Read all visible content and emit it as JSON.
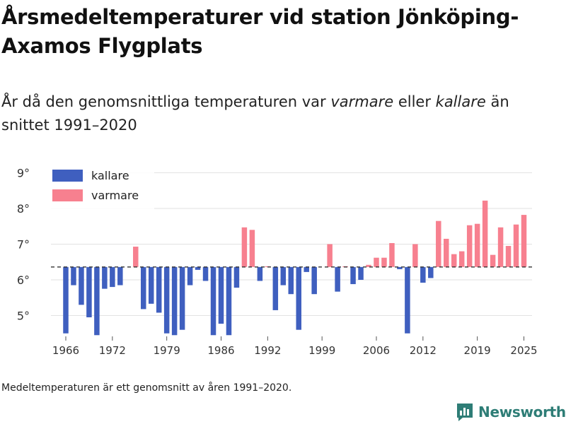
{
  "header": {
    "title": "Årsmedeltemperaturer vid station Jönköping-Axamos Flygplats",
    "subtitle_before": "År då den genomsnittliga temperaturen var ",
    "subtitle_warm": "varmare",
    "subtitle_middle": " eller ",
    "subtitle_cold": "kallare",
    "subtitle_after": " än snittet 1991–2020"
  },
  "footer": {
    "note": "Medeltemperaturen är ett genomsnitt av åren 1991–2020.",
    "brand": "Newsworthy"
  },
  "colors": {
    "cold": "#3f5fbf",
    "warm": "#f7808f",
    "grid": "#e2e2e2",
    "brand": "#2e7d76"
  },
  "chart_data": {
    "type": "bar",
    "title": "Årsmedeltemperaturer vid station Jönköping-Axamos Flygplats",
    "baseline": 6.36,
    "baseline_label": "snittet 1991–2020",
    "ylim": [
      4.45,
      9.2
    ],
    "yticks": [
      5,
      6,
      7,
      8,
      9
    ],
    "ytick_labels": [
      "5°",
      "6°",
      "7°",
      "8°",
      "9°"
    ],
    "xticks": [
      1966,
      1972,
      1979,
      1986,
      1992,
      1999,
      2006,
      2012,
      2019,
      2025
    ],
    "legend": [
      {
        "key": "cold",
        "label": "kallare"
      },
      {
        "key": "warm",
        "label": "varmare"
      }
    ],
    "legend_position": "top-left",
    "years": [
      1966,
      1967,
      1968,
      1969,
      1970,
      1971,
      1972,
      1973,
      1974,
      1975,
      1976,
      1977,
      1978,
      1979,
      1980,
      1981,
      1982,
      1983,
      1984,
      1985,
      1986,
      1987,
      1988,
      1989,
      1990,
      1991,
      1992,
      1993,
      1994,
      1995,
      1996,
      1997,
      1998,
      1999,
      2000,
      2001,
      2002,
      2003,
      2004,
      2005,
      2006,
      2007,
      2008,
      2009,
      2010,
      2011,
      2012,
      2013,
      2014,
      2015,
      2016,
      2017,
      2018,
      2019,
      2020,
      2021,
      2022,
      2023,
      2024,
      2025
    ],
    "values": [
      4.5,
      5.85,
      5.3,
      4.95,
      4.45,
      5.75,
      5.8,
      5.85,
      null,
      6.93,
      5.18,
      5.33,
      5.08,
      4.5,
      4.45,
      4.6,
      5.85,
      6.28,
      5.97,
      4.45,
      4.77,
      4.45,
      5.78,
      7.47,
      7.4,
      5.97,
      6.38,
      5.15,
      5.85,
      5.6,
      4.6,
      6.22,
      5.6,
      null,
      7.0,
      5.67,
      6.38,
      5.88,
      6.0,
      6.42,
      6.62,
      6.62,
      7.03,
      6.3,
      4.5,
      7.0,
      5.92,
      6.05,
      7.65,
      7.15,
      6.72,
      6.8,
      7.53,
      7.57,
      8.22,
      6.7,
      7.47,
      6.95,
      7.55,
      7.82
    ]
  }
}
